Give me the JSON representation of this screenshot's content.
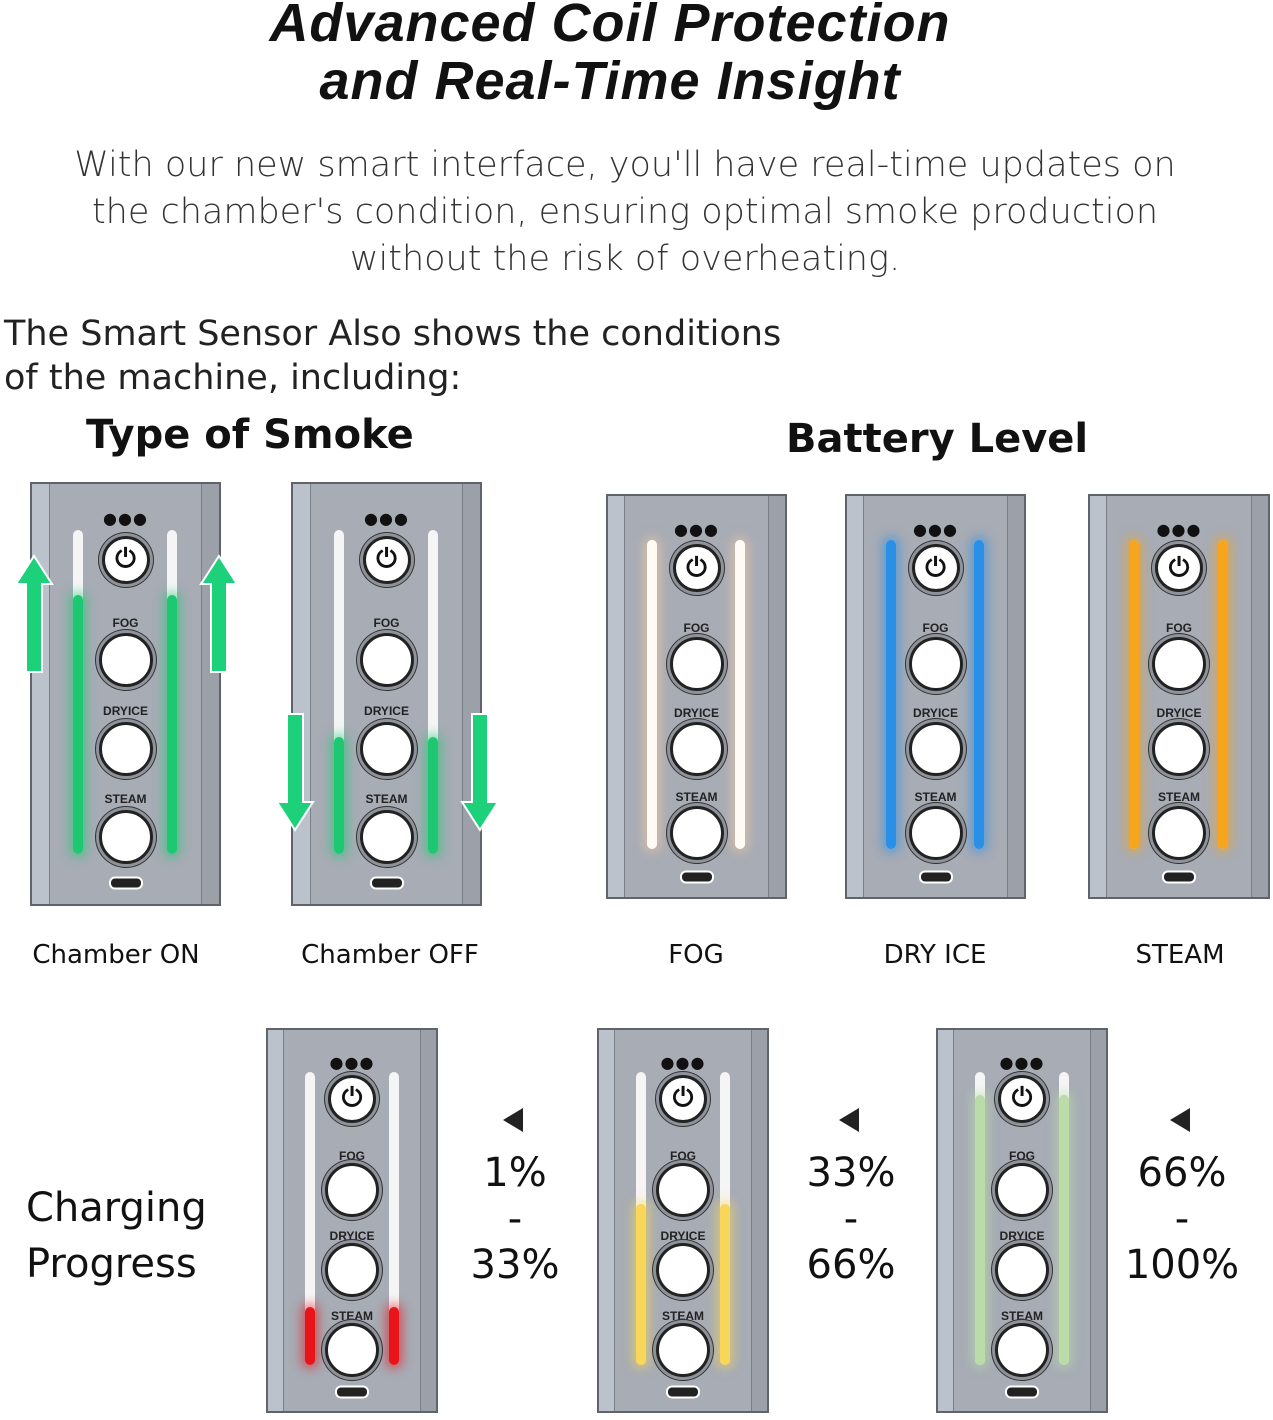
{
  "title": [
    "Advanced Coil Protection",
    "and Real-Time Insight"
  ],
  "intro": [
    "With our new smart interface, you'll have real-time updates on",
    "the chamber's condition, ensuring optimal smoke production",
    "without the risk of overheating."
  ],
  "sensor": [
    "The Smart Sensor Also shows the conditions",
    "of the machine, including:"
  ],
  "sections": {
    "smoke": "Type of Smoke",
    "battery": "Battery Level",
    "charging": [
      "Charging",
      "Progress"
    ]
  },
  "device_labels": {
    "fog": "FOG",
    "dryice": "DRYICE",
    "steam": "STEAM",
    "power_icon": "power-icon"
  },
  "panels": [
    {
      "caption": "Chamber ON",
      "color": "#1ec872",
      "fill": 0.8,
      "arrows": "up"
    },
    {
      "caption": "Chamber OFF",
      "color": "#1ec872",
      "fill": 0.36,
      "arrows": "down"
    },
    {
      "caption": "FOG",
      "color": "#fffaf3",
      "glow": "#f3c9a2",
      "fill": 1
    },
    {
      "caption": "DRY ICE",
      "color": "#2a8fe6",
      "fill": 1
    },
    {
      "caption": "STEAM",
      "color": "#f7a51c",
      "fill": 1
    },
    {
      "range": [
        "1%",
        "-",
        "33%"
      ],
      "color": "#e8141a",
      "fill": 0.2
    },
    {
      "range": [
        "33%",
        "-",
        "66%"
      ],
      "color": "#f7d659",
      "fill": 0.55
    },
    {
      "range": [
        "66%",
        "-",
        "100%"
      ],
      "color": "#b9dca9",
      "fill": 0.92
    }
  ],
  "arrow_color": "#1dd07a"
}
